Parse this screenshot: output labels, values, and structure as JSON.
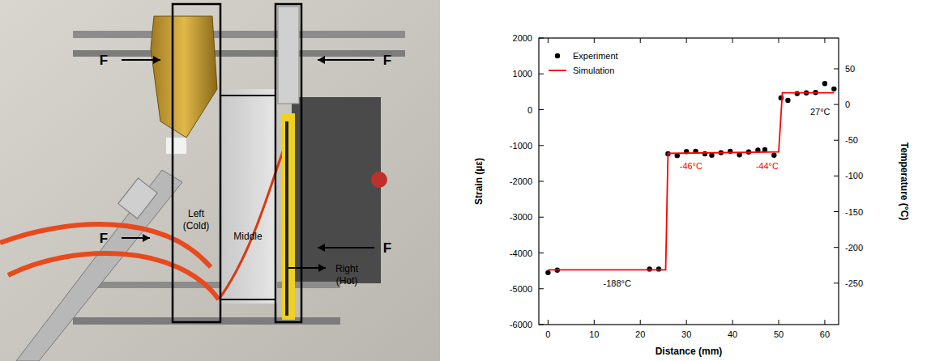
{
  "photo": {
    "forces": [
      "F",
      "F",
      "F",
      "F"
    ],
    "regions": [
      "Left (Cold)",
      "Middle",
      "Right (Hot)"
    ]
  },
  "chart_data": {
    "type": "scatter",
    "xlabel": "Distance (mm)",
    "ylabel": "Strain (µε)",
    "y2label": "Temperature (°C)",
    "xlim": [
      -2,
      63
    ],
    "xticks": [
      0,
      10,
      20,
      30,
      40,
      50,
      60
    ],
    "ylim": [
      -6000,
      2000
    ],
    "yticks": [
      -6000,
      -5000,
      -4000,
      -3000,
      -2000,
      -1000,
      0,
      1000,
      2000
    ],
    "y2lim": [
      -308,
      93
    ],
    "y2ticks": [
      -250,
      -200,
      -150,
      -100,
      -50,
      0,
      50
    ],
    "legend": "upper left",
    "series": [
      {
        "name": "Experiment",
        "type": "scatter",
        "marker": "circle",
        "color": "#000000",
        "x": [
          0,
          2,
          22,
          24,
          26,
          28,
          30,
          32,
          34,
          35.5,
          37.5,
          39.5,
          41.5,
          43.5,
          45.5,
          47,
          49,
          50.5,
          52,
          54,
          56,
          58,
          60,
          62
        ],
        "values": [
          -4550,
          -4480,
          -4450,
          -4450,
          -1230,
          -1280,
          -1170,
          -1160,
          -1230,
          -1270,
          -1200,
          -1160,
          -1260,
          -1180,
          -1130,
          -1120,
          -1270,
          330,
          260,
          450,
          470,
          480,
          730,
          580
        ]
      },
      {
        "name": "Simulation",
        "type": "line",
        "line_style": "solid",
        "color": "#ff0000",
        "x": [
          0,
          25.5,
          26,
          50,
          50.8,
          62
        ],
        "values": [
          -4470,
          -4470,
          -1220,
          -1180,
          470,
          470
        ]
      }
    ],
    "annotations": [
      {
        "text": "-188°C",
        "x": 15,
        "y": -4850,
        "color": "#000000"
      },
      {
        "text": "-46°C",
        "x": 31,
        "y": -1560,
        "color": "#ff0000"
      },
      {
        "text": "-44°C",
        "x": 47.5,
        "y": -1560,
        "color": "#ff0000"
      },
      {
        "text": "27°C",
        "x": 59,
        "y": -60,
        "color": "#000000"
      }
    ]
  }
}
